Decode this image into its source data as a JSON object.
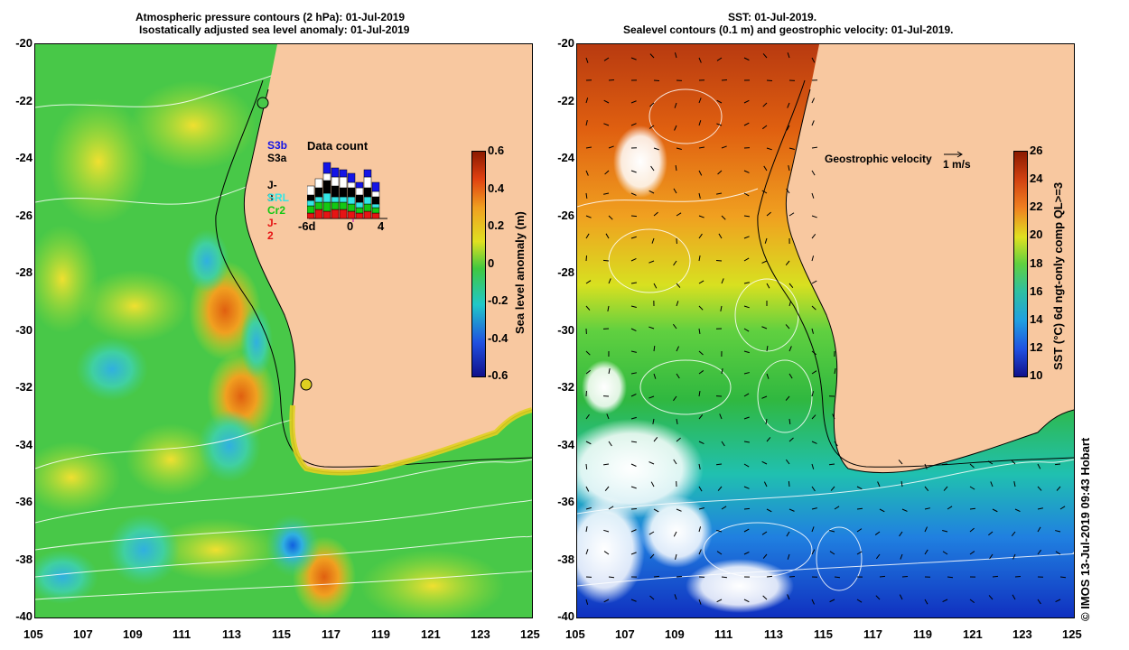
{
  "left": {
    "title_line1": "Atmospheric pressure contours (2 hPa): 01-Jul-2019",
    "title_line2": "Isostatically adjusted sea level anomaly: 01-Jul-2019",
    "y_ticks": [
      "-20",
      "-22",
      "-24",
      "-26",
      "-28",
      "-30",
      "-32",
      "-34",
      "-36",
      "-38",
      "-40"
    ],
    "x_ticks": [
      "105",
      "107",
      "109",
      "111",
      "113",
      "115",
      "117",
      "119",
      "121",
      "123",
      "125"
    ],
    "colorbar": {
      "label": "Sea level anomaly (m)",
      "ticks": [
        "0.6",
        "0.4",
        "0.2",
        "0",
        "-0.2",
        "-0.4",
        "-0.6"
      ],
      "range": [
        -0.6,
        0.6
      ]
    },
    "data_count": {
      "title": "Data count",
      "x_ticks": [
        "-6d",
        "0",
        "4"
      ],
      "satellites": [
        {
          "name": "S3b",
          "color": "#1414e6"
        },
        {
          "name": "S3a",
          "color": "#000000"
        },
        {
          "name": "J-3",
          "color": "#000000"
        },
        {
          "name": "SRL",
          "color": "#33e6e6"
        },
        {
          "name": "Cr2",
          "color": "#14c814"
        },
        {
          "name": "J-2",
          "color": "#e61414"
        }
      ]
    }
  },
  "right": {
    "title_line1": "SST: 01-Jul-2019.",
    "title_line2": "Sealevel contours (0.1 m) and geostrophic velocity: 01-Jul-2019.",
    "y_ticks": [
      "-20",
      "-22",
      "-24",
      "-26",
      "-28",
      "-30",
      "-32",
      "-34",
      "-36",
      "-38",
      "-40"
    ],
    "x_ticks": [
      "105",
      "107",
      "109",
      "111",
      "113",
      "115",
      "117",
      "119",
      "121",
      "123",
      "125"
    ],
    "velocity_label": "Geostrophic velocity",
    "velocity_scale": "1 m/s",
    "colorbar": {
      "label": "SST (°C) 6d ngt-only comp QL>=3",
      "ticks": [
        "26",
        "24",
        "22",
        "20",
        "18",
        "16",
        "14",
        "12",
        "10"
      ],
      "range": [
        10,
        26
      ]
    }
  },
  "credit": "© IMOS 13-Jul-2019 09:43 Hobart"
}
